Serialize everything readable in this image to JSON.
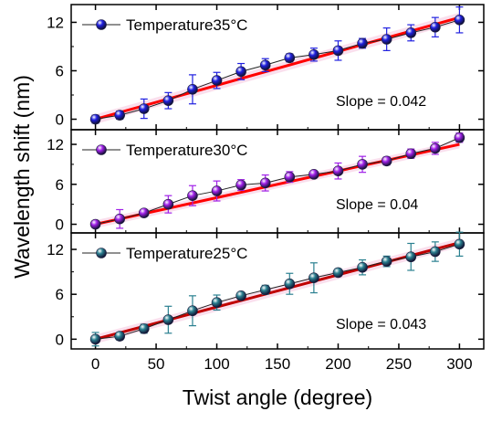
{
  "chart_data": {
    "type": "scatter",
    "xlabel": "Twist angle (degree)",
    "ylabel": "Wavelength shift (nm)",
    "xlim": [
      -20,
      320
    ],
    "x_ticks": [
      0,
      50,
      100,
      150,
      200,
      250,
      300
    ],
    "x_tick_labels": [
      "0",
      "50",
      "100",
      "150",
      "200",
      "250",
      "300"
    ],
    "grid": false,
    "panels": [
      {
        "legend": "Temperature35°C",
        "slope_text": "Slope = 0.042",
        "ylim": [
          -1.3,
          14.2
        ],
        "y_ticks": [
          0,
          6,
          12
        ],
        "y_tick_labels": [
          "0",
          "6",
          "12"
        ],
        "point_color": "#2020e0",
        "fit_color": "#ff0000",
        "fit": {
          "slope": 0.042,
          "intercept": 0.0
        },
        "x": [
          0,
          20,
          40,
          60,
          80,
          100,
          120,
          140,
          160,
          180,
          200,
          220,
          240,
          260,
          280,
          300
        ],
        "y": [
          0.0,
          0.5,
          1.3,
          2.3,
          3.7,
          4.8,
          5.9,
          6.7,
          7.6,
          8.0,
          8.5,
          9.4,
          9.9,
          10.7,
          11.4,
          12.3
        ],
        "err": [
          0.5,
          0.5,
          1.2,
          1.0,
          1.8,
          1.0,
          1.0,
          0.8,
          0.5,
          0.8,
          1.2,
          0.6,
          1.4,
          1.0,
          1.2,
          1.6
        ]
      },
      {
        "legend": "Temperature30°C",
        "slope_text": "Slope = 0.04",
        "ylim": [
          -1.3,
          14.2
        ],
        "y_ticks": [
          0,
          6,
          12
        ],
        "y_tick_labels": [
          "0",
          "6",
          "12"
        ],
        "point_color": "#a020e8",
        "fit_color": "#ff0000",
        "fit": {
          "slope": 0.04,
          "intercept": 0.0
        },
        "x": [
          0,
          20,
          40,
          60,
          80,
          100,
          120,
          140,
          160,
          180,
          200,
          220,
          240,
          260,
          280,
          300
        ],
        "y": [
          0.0,
          0.8,
          1.7,
          3.0,
          4.3,
          5.0,
          5.9,
          6.2,
          7.1,
          7.5,
          8.0,
          9.0,
          9.5,
          10.6,
          11.4,
          13.0
        ],
        "err": [
          0.5,
          1.4,
          0.4,
          1.3,
          1.5,
          1.5,
          0.8,
          1.2,
          0.8,
          0.4,
          1.2,
          1.2,
          0.6,
          0.7,
          0.9,
          0.7
        ]
      },
      {
        "legend": "Temperature25°C",
        "slope_text": "Slope = 0.043",
        "ylim": [
          -1.3,
          14.2
        ],
        "y_ticks": [
          0,
          6,
          12
        ],
        "y_tick_labels": [
          "0",
          "6",
          "12"
        ],
        "point_color": "#2a8090",
        "fit_color": "#c00000",
        "fit": {
          "slope": 0.043,
          "intercept": 0.0
        },
        "x": [
          0,
          20,
          40,
          60,
          80,
          100,
          120,
          140,
          160,
          180,
          200,
          220,
          240,
          260,
          280,
          300
        ],
        "y": [
          0.0,
          0.4,
          1.4,
          2.6,
          3.8,
          4.9,
          5.8,
          6.6,
          7.4,
          8.2,
          8.9,
          9.6,
          10.4,
          11.0,
          11.7,
          12.7
        ],
        "err": [
          0.9,
          0.5,
          0.6,
          1.8,
          2.0,
          1.0,
          0.4,
          0.6,
          1.4,
          2.0,
          0.5,
          1.0,
          0.7,
          1.8,
          1.3,
          1.6
        ]
      }
    ]
  }
}
